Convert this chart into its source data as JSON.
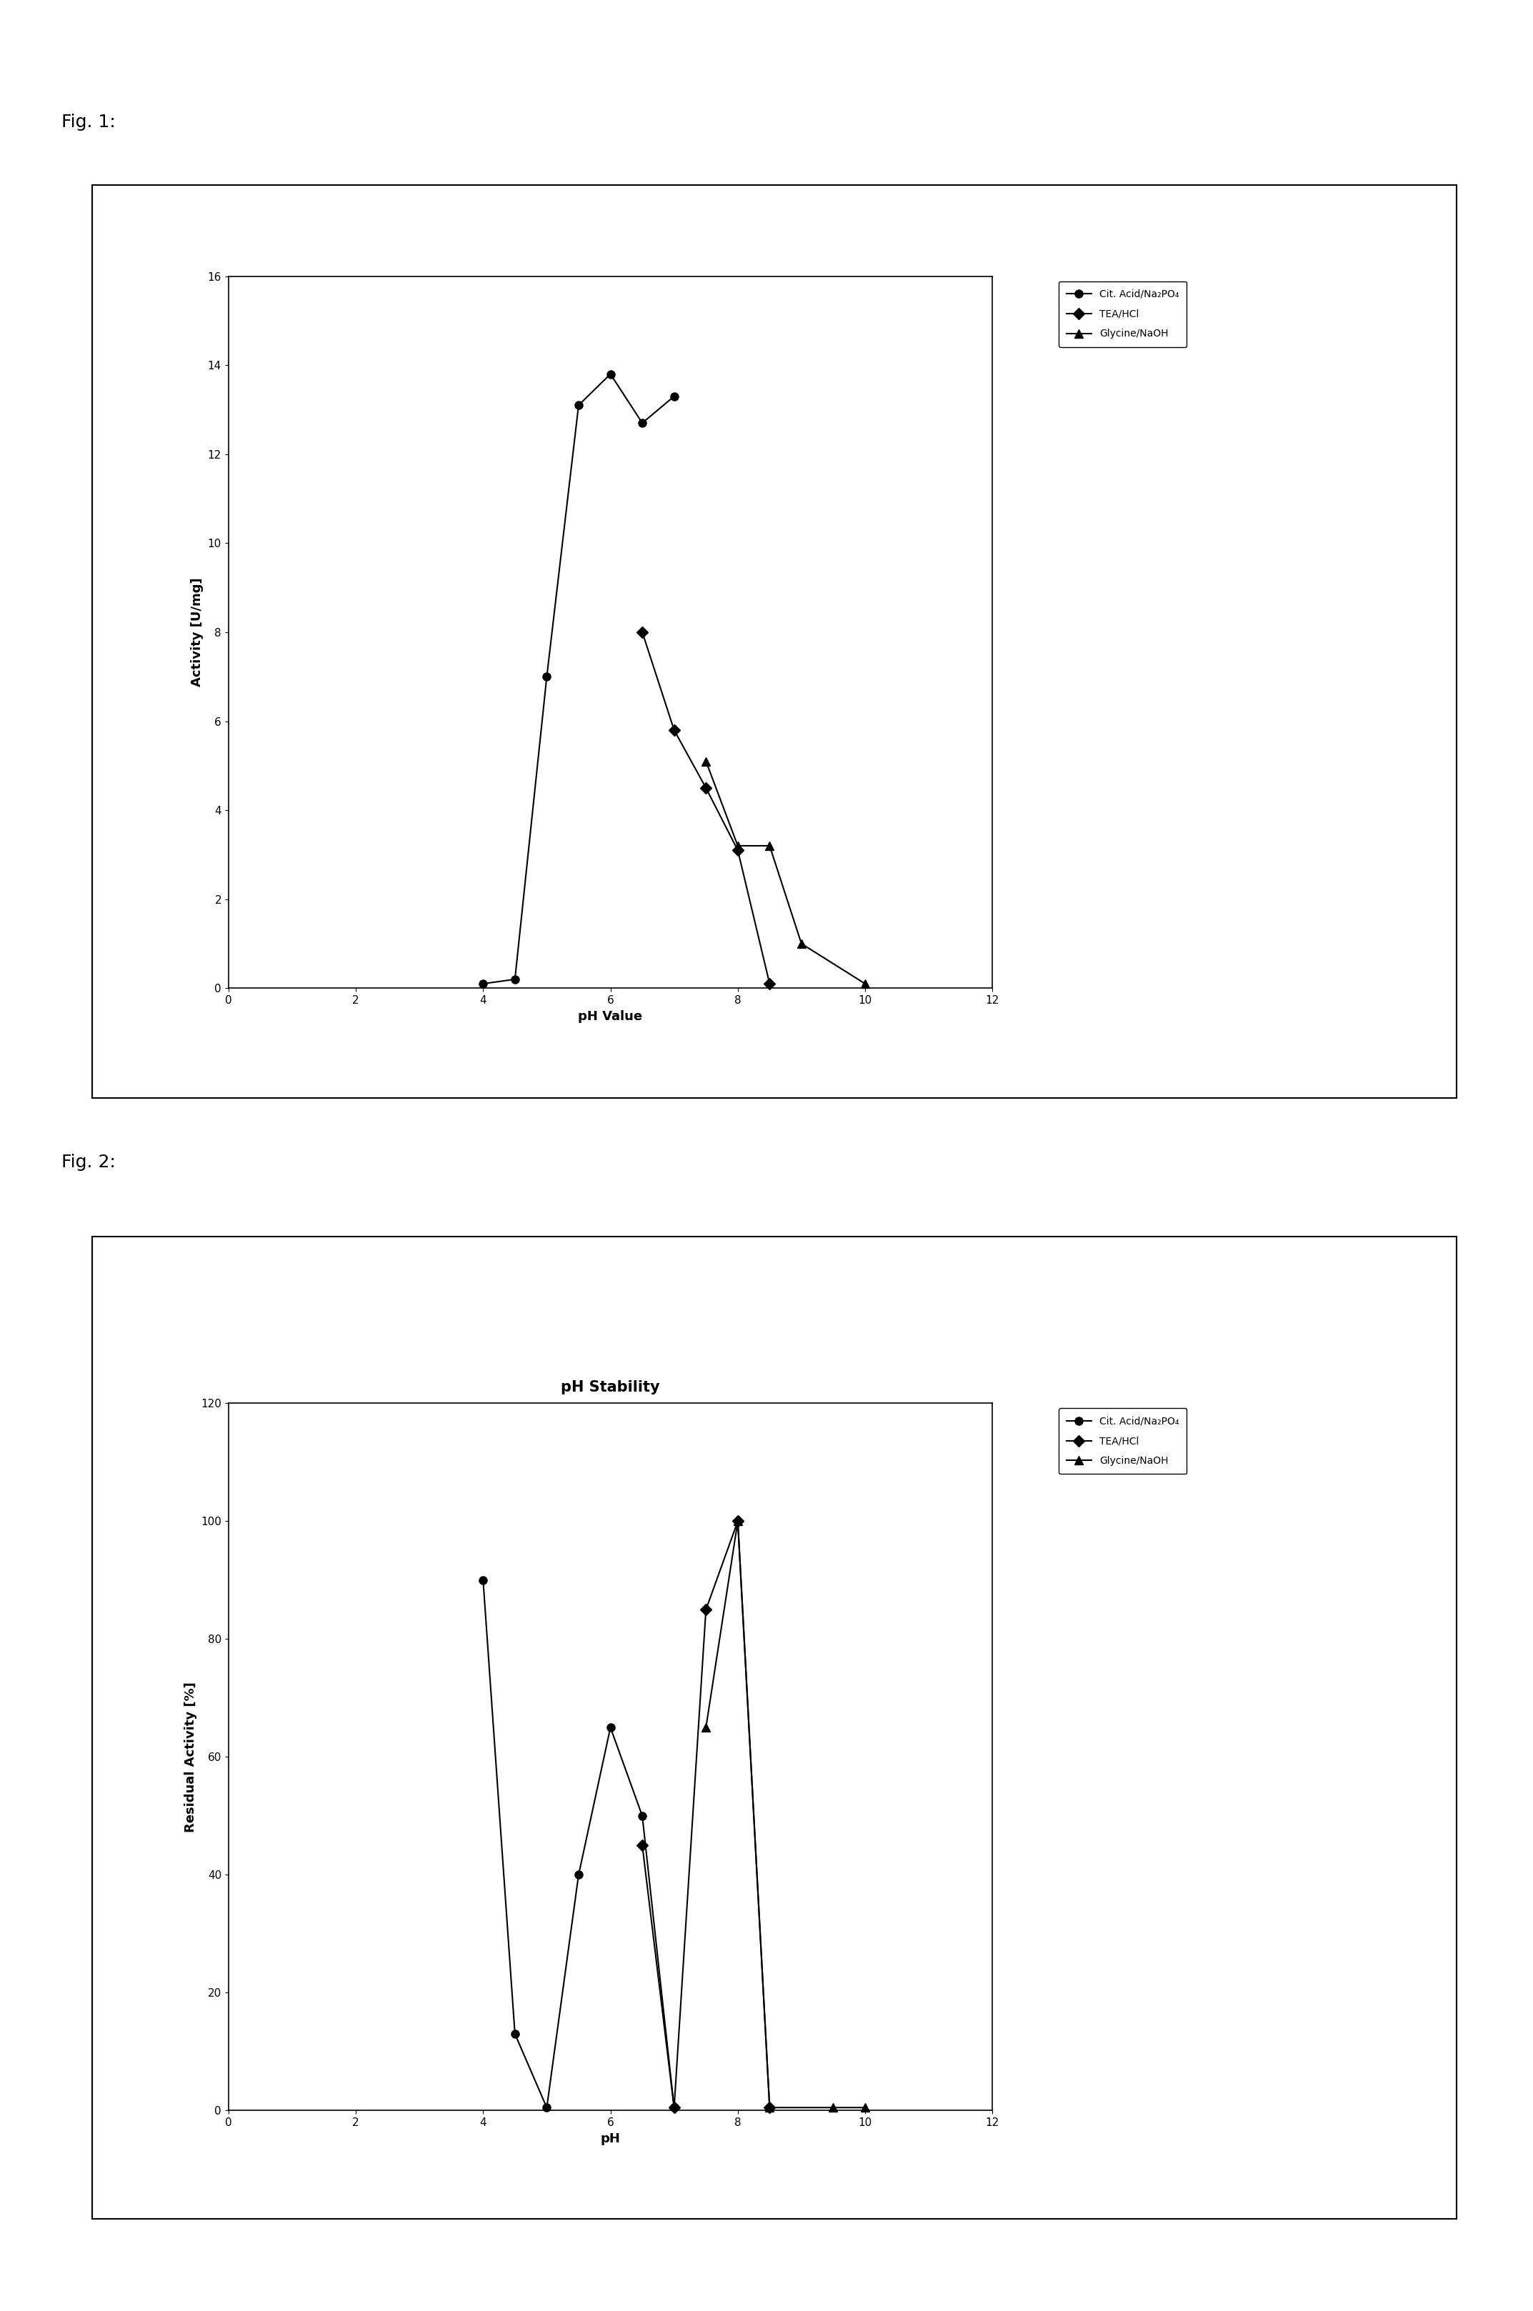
{
  "fig1": {
    "xlabel": "pH Value",
    "ylabel": "Activity [U/mg]",
    "xlim": [
      0,
      12
    ],
    "ylim": [
      0,
      16
    ],
    "xticks": [
      0,
      2,
      4,
      6,
      8,
      10,
      12
    ],
    "yticks": [
      0,
      2,
      4,
      6,
      8,
      10,
      12,
      14,
      16
    ],
    "series": [
      {
        "label": "Cit. Acid/Na₂PO₄",
        "marker": "o",
        "x": [
          4.0,
          4.5,
          5.0,
          5.5,
          6.0,
          6.5,
          7.0
        ],
        "y": [
          0.1,
          0.2,
          7.0,
          13.1,
          13.8,
          12.7,
          13.3
        ]
      },
      {
        "label": "TEA/HCl",
        "marker": "D",
        "x": [
          6.5,
          7.0,
          7.5,
          8.0,
          8.5
        ],
        "y": [
          8.0,
          5.8,
          4.5,
          3.1,
          0.1
        ]
      },
      {
        "label": "Glycine/NaOH",
        "marker": "^",
        "x": [
          7.5,
          8.0,
          8.5,
          9.0,
          10.0
        ],
        "y": [
          5.1,
          3.2,
          3.2,
          1.0,
          0.1
        ]
      }
    ]
  },
  "fig2": {
    "title": "pH Stability",
    "xlabel": "pH",
    "ylabel": "Residual Activity [%]",
    "xlim": [
      0,
      12
    ],
    "ylim": [
      0,
      120
    ],
    "xticks": [
      0,
      2,
      4,
      6,
      8,
      10,
      12
    ],
    "yticks": [
      0,
      20,
      40,
      60,
      80,
      100,
      120
    ],
    "series": [
      {
        "label": "Cit. Acid/Na₂PO₄",
        "marker": "o",
        "x": [
          4.0,
          4.5,
          5.0,
          5.5,
          6.0,
          6.5,
          7.0
        ],
        "y": [
          90.0,
          13.0,
          0.5,
          40.0,
          65.0,
          50.0,
          0.5
        ]
      },
      {
        "label": "TEA/HCl",
        "marker": "D",
        "x": [
          6.5,
          7.0,
          7.5,
          8.0,
          8.5
        ],
        "y": [
          45.0,
          0.5,
          85.0,
          100.0,
          0.5
        ]
      },
      {
        "label": "Glycine/NaOH",
        "marker": "^",
        "x": [
          7.5,
          8.0,
          8.5,
          9.5,
          10.0
        ],
        "y": [
          65.0,
          100.0,
          0.5,
          0.5,
          0.5
        ]
      }
    ]
  },
  "color": "#000000",
  "linewidth": 1.5,
  "markersize": 8,
  "background_color": "#ffffff",
  "fig_label_fontsize": 18,
  "axis_label_fontsize": 13,
  "tick_fontsize": 11,
  "legend_fontsize": 10,
  "title_fontsize": 15,
  "fig1_label": "Fig. 1:",
  "fig2_label": "Fig. 2:"
}
